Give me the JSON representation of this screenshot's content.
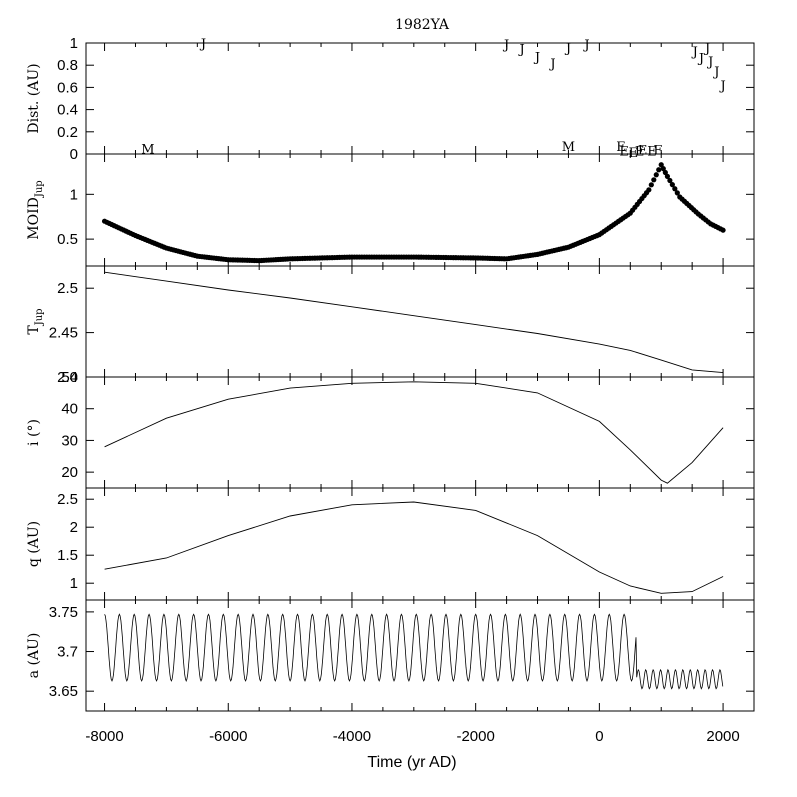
{
  "chart_data": {
    "type": "line",
    "title": "1982YA",
    "xlabel": "Time (yr AD)",
    "xlim": [
      -8300,
      2500
    ],
    "xticks": [
      -8000,
      -6000,
      -4000,
      -2000,
      0,
      2000
    ],
    "xtick_labels": [
      "-8000",
      "-6000",
      "-4000",
      "-2000",
      "0",
      "2000"
    ],
    "panels": [
      {
        "id": "dist",
        "ylabel": "Dist. (AU)",
        "ylim": [
          0,
          1
        ],
        "yticks": [
          0,
          0.2,
          0.4,
          0.6,
          0.8,
          1
        ],
        "ytick_labels": [
          "0",
          "0.2",
          "0.4",
          "0.6",
          "0.8",
          "1"
        ],
        "encounters": [
          {
            "t": -6400,
            "d": 1.0,
            "label": "J"
          },
          {
            "t": -7300,
            "d": 0.05,
            "label": "M"
          },
          {
            "t": -1500,
            "d": 0.99,
            "label": "J"
          },
          {
            "t": -1250,
            "d": 0.95,
            "label": "J"
          },
          {
            "t": -1000,
            "d": 0.88,
            "label": "J"
          },
          {
            "t": -750,
            "d": 0.82,
            "label": "J"
          },
          {
            "t": -500,
            "d": 0.96,
            "label": "J"
          },
          {
            "t": -200,
            "d": 0.99,
            "label": "J"
          },
          {
            "t": -500,
            "d": 0.07,
            "label": "M"
          },
          {
            "t": 350,
            "d": 0.07,
            "label": "E"
          },
          {
            "t": 400,
            "d": 0.03,
            "label": "E"
          },
          {
            "t": 550,
            "d": 0.02,
            "label": "E"
          },
          {
            "t": 650,
            "d": 0.03,
            "label": "E"
          },
          {
            "t": 700,
            "d": 0.04,
            "label": "E"
          },
          {
            "t": 850,
            "d": 0.03,
            "label": "E"
          },
          {
            "t": 950,
            "d": 0.04,
            "label": "E"
          },
          {
            "t": 1550,
            "d": 0.93,
            "label": "J"
          },
          {
            "t": 1650,
            "d": 0.87,
            "label": "J"
          },
          {
            "t": 1750,
            "d": 0.96,
            "label": "J"
          },
          {
            "t": 1800,
            "d": 0.84,
            "label": "J"
          },
          {
            "t": 1900,
            "d": 0.75,
            "label": "J"
          },
          {
            "t": 2000,
            "d": 0.62,
            "label": "J"
          }
        ]
      },
      {
        "id": "moid",
        "ylabel": "MOID",
        "ylabel_sub": "Jup",
        "ylim": [
          0.2,
          1.45
        ],
        "yticks": [
          0.5,
          1
        ],
        "ytick_labels": [
          "0.5",
          "1"
        ],
        "series": {
          "style": "dots",
          "x": [
            -8000,
            -7500,
            -7000,
            -6500,
            -6000,
            -5500,
            -5000,
            -4000,
            -3000,
            -2000,
            -1500,
            -1000,
            -500,
            0,
            500,
            800,
            1000,
            1100,
            1300,
            1600,
            1800,
            2000
          ],
          "y": [
            0.7,
            0.54,
            0.4,
            0.31,
            0.27,
            0.26,
            0.28,
            0.3,
            0.3,
            0.29,
            0.28,
            0.33,
            0.41,
            0.55,
            0.79,
            1.05,
            1.33,
            1.2,
            0.97,
            0.78,
            0.67,
            0.6
          ]
        }
      },
      {
        "id": "tjup",
        "ylabel": "T",
        "ylabel_sub": "Jup",
        "ylim": [
          2.4,
          2.525
        ],
        "yticks": [
          2.4,
          2.45,
          2.5
        ],
        "ytick_labels": [
          "2.4",
          "2.45",
          "2.5"
        ],
        "series": {
          "style": "line",
          "x": [
            -8000,
            -7000,
            -6000,
            -5000,
            -4000,
            -3000,
            -2000,
            -1000,
            0,
            500,
            1000,
            1500,
            2000
          ],
          "y": [
            2.518,
            2.508,
            2.498,
            2.489,
            2.479,
            2.469,
            2.459,
            2.449,
            2.437,
            2.43,
            2.419,
            2.408,
            2.405
          ]
        }
      },
      {
        "id": "incl",
        "ylabel": "i (°)",
        "ylim": [
          15,
          50
        ],
        "yticks": [
          20,
          30,
          40,
          50
        ],
        "ytick_labels": [
          "20",
          "30",
          "40",
          "50"
        ],
        "series": {
          "style": "line",
          "x": [
            -8000,
            -7000,
            -6000,
            -5000,
            -4000,
            -3000,
            -2000,
            -1000,
            0,
            500,
            1000,
            1100,
            1500,
            2000
          ],
          "y": [
            28,
            37,
            43,
            46.5,
            48,
            48.5,
            48,
            45,
            36,
            27,
            17.5,
            16.5,
            23,
            34
          ]
        }
      },
      {
        "id": "q",
        "ylabel": "q (AU)",
        "ylim": [
          0.7,
          2.7
        ],
        "yticks": [
          1,
          1.5,
          2,
          2.5
        ],
        "ytick_labels": [
          "1",
          "1.5",
          "2",
          "2.5"
        ],
        "series": {
          "style": "line",
          "x": [
            -8000,
            -7000,
            -6000,
            -5000,
            -4000,
            -3000,
            -2000,
            -1000,
            0,
            500,
            1000,
            1500,
            2000
          ],
          "y": [
            1.25,
            1.45,
            1.85,
            2.2,
            2.4,
            2.45,
            2.3,
            1.85,
            1.2,
            0.95,
            0.82,
            0.85,
            1.12
          ]
        }
      },
      {
        "id": "a",
        "ylabel": "a (AU)",
        "ylim": [
          3.625,
          3.765
        ],
        "yticks": [
          3.65,
          3.7,
          3.75
        ],
        "ytick_labels": [
          "3.65",
          "3.7",
          "3.75"
        ],
        "series": {
          "style": "oscillation",
          "x_start": -8000,
          "x_end": 2000,
          "x_break": 600,
          "period": 240,
          "mean": 3.705,
          "amplitude": 0.042,
          "late_mean": 3.665,
          "late_amplitude": 0.012
        }
      }
    ]
  }
}
